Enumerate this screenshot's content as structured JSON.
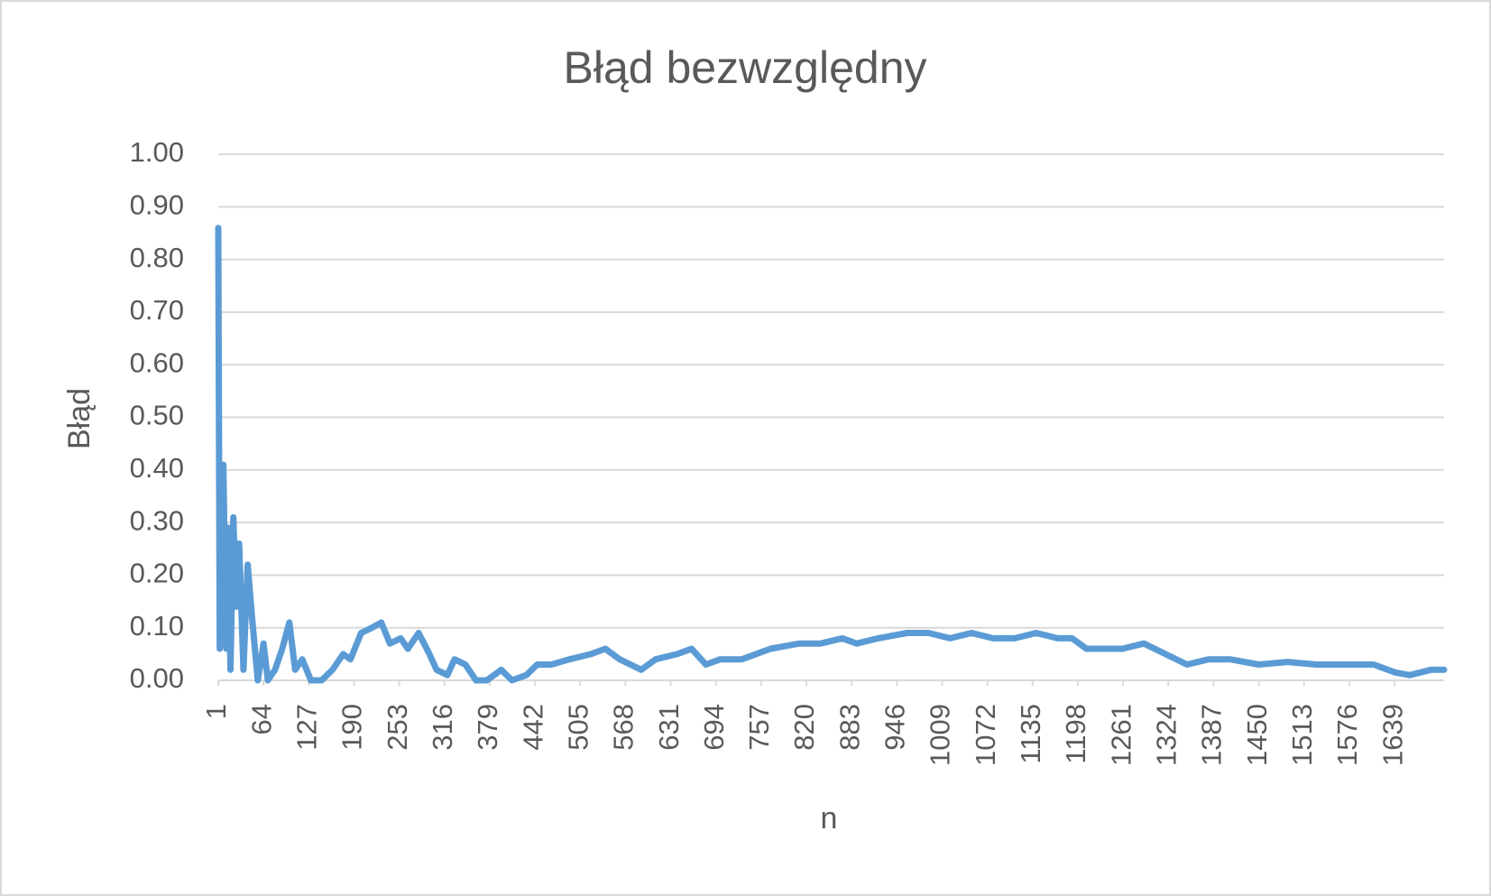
{
  "chart_data": {
    "type": "line",
    "title": "Błąd bezwzględny",
    "x_label": "n",
    "y_label": "Błąd",
    "xlim": [
      1,
      1708
    ],
    "xticks": [
      1,
      64,
      127,
      190,
      253,
      316,
      379,
      442,
      505,
      568,
      631,
      694,
      757,
      820,
      883,
      946,
      1009,
      1072,
      1135,
      1198,
      1261,
      1324,
      1387,
      1450,
      1513,
      1576,
      1639
    ],
    "ylim": [
      0,
      1
    ],
    "yticks": [
      {
        "value": 0,
        "label": "0.00"
      },
      {
        "value": 0.1,
        "label": "0.10"
      },
      {
        "value": 0.2,
        "label": "0.20"
      },
      {
        "value": 0.3,
        "label": "0.30"
      },
      {
        "value": 0.4,
        "label": "0.40"
      },
      {
        "value": 0.5,
        "label": "0.50"
      },
      {
        "value": 0.6,
        "label": "0.60"
      },
      {
        "value": 0.7,
        "label": "0.70"
      },
      {
        "value": 0.8,
        "label": "0.80"
      },
      {
        "value": 0.9,
        "label": "0.90"
      },
      {
        "value": 1,
        "label": "1.00"
      }
    ],
    "grid": true,
    "x": [
      1,
      3,
      8,
      12,
      15,
      18,
      22,
      26,
      30,
      36,
      42,
      48,
      56,
      64,
      70,
      80,
      90,
      100,
      108,
      118,
      130,
      145,
      160,
      175,
      185,
      200,
      215,
      228,
      240,
      255,
      265,
      280,
      295,
      305,
      320,
      330,
      345,
      360,
      375,
      395,
      410,
      430,
      445,
      465,
      490,
      520,
      540,
      560,
      575,
      590,
      610,
      640,
      660,
      680,
      700,
      730,
      770,
      810,
      840,
      870,
      890,
      920,
      960,
      990,
      1020,
      1050,
      1080,
      1110,
      1140,
      1170,
      1190,
      1210,
      1240,
      1260,
      1290,
      1320,
      1350,
      1380,
      1410,
      1450,
      1490,
      1530,
      1570,
      1610,
      1640,
      1660,
      1690,
      1708
    ],
    "series": [
      {
        "name": "Błąd",
        "color": "#5b9bd5",
        "values": [
          0.86,
          0.06,
          0.41,
          0.06,
          0.29,
          0.02,
          0.31,
          0.14,
          0.26,
          0.02,
          0.22,
          0.12,
          0.0,
          0.07,
          0.0,
          0.02,
          0.06,
          0.11,
          0.02,
          0.04,
          0.0,
          0.0,
          0.02,
          0.05,
          0.04,
          0.09,
          0.1,
          0.11,
          0.07,
          0.08,
          0.06,
          0.09,
          0.05,
          0.02,
          0.01,
          0.04,
          0.03,
          0.0,
          0.0,
          0.02,
          0.0,
          0.01,
          0.03,
          0.03,
          0.04,
          0.05,
          0.06,
          0.04,
          0.03,
          0.02,
          0.04,
          0.05,
          0.06,
          0.03,
          0.04,
          0.04,
          0.06,
          0.07,
          0.07,
          0.08,
          0.07,
          0.08,
          0.09,
          0.09,
          0.08,
          0.09,
          0.08,
          0.08,
          0.09,
          0.08,
          0.08,
          0.06,
          0.06,
          0.06,
          0.07,
          0.05,
          0.03,
          0.04,
          0.04,
          0.03,
          0.035,
          0.03,
          0.03,
          0.03,
          0.015,
          0.01,
          0.02,
          0.02
        ]
      }
    ]
  }
}
